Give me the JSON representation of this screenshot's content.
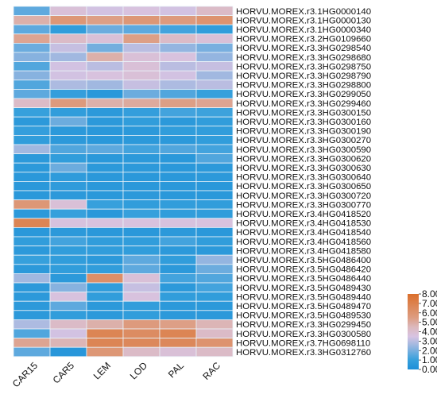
{
  "chart_data": {
    "type": "heatmap",
    "columns": [
      "CAR15",
      "CAR5",
      "LEM",
      "LOD",
      "PAL",
      "RAC"
    ],
    "rows": [
      "HORVU.MOREX.r3.1HG0000140",
      "HORVU.MOREX.r3.1HG0000130",
      "HORVU.MOREX.r3.1HG0000340",
      "HORVU.MOREX.r3.2HG0109660",
      "HORVU.MOREX.r3.3HG0298540",
      "HORVU.MOREX.r3.3HG0298680",
      "HORVU.MOREX.r3.3HG0298750",
      "HORVU.MOREX.r3.3HG0298790",
      "HORVU.MOREX.r3.3HG0298800",
      "HORVU.MOREX.r3.3HG0299050",
      "HORVU.MOREX.r3.3HG0299460",
      "HORVU.MOREX.r3.3HG0300150",
      "HORVU.MOREX.r3.3HG0300160",
      "HORVU.MOREX.r3.3HG0300190",
      "HORVU.MOREX.r3.3HG0300270",
      "HORVU.MOREX.r3.3HG0300590",
      "HORVU.MOREX.r3.3HG0300620",
      "HORVU.MOREX.r3.3HG0300630",
      "HORVU.MOREX.r3.3HG0300640",
      "HORVU.MOREX.r3.3HG0300650",
      "HORVU.MOREX.r3.3HG0300720",
      "HORVU.MOREX.r3.3HG0300770",
      "HORVU.MOREX.r3.4HG0418520",
      "HORVU.MOREX.r3.4HG0418530",
      "HORVU.MOREX.r3.4HG0418540",
      "HORVU.MOREX.r3.4HG0418560",
      "HORVU.MOREX.r3.4HG0418580",
      "HORVU.MOREX.r3.5HG0486400",
      "HORVU.MOREX.r3.5HG0486420",
      "HORVU.MOREX.r3.5HG0486440",
      "HORVU.MOREX.r3.5HG0489430",
      "HORVU.MOREX.r3.5HG0489440",
      "HORVU.MOREX.r3.5HG0489470",
      "HORVU.MOREX.r3.5HG0489530",
      "HORVU.MOREX.r3.3HG0299450",
      "HORVU.MOREX.r3.3HG0300580",
      "HORVU.MOREX.r3.7HG0698110",
      "HORVU.MOREX.r3.3HG0312760"
    ],
    "values": [
      [
        1.6,
        3.8,
        3.4,
        3.6,
        3.4,
        4.2
      ],
      [
        4.8,
        5.8,
        5.4,
        5.8,
        5.6,
        6.0
      ],
      [
        1.6,
        0.8,
        1.8,
        1.6,
        1.2,
        0.8
      ],
      [
        5.2,
        4.2,
        3.8,
        5.4,
        4.2,
        3.8
      ],
      [
        1.8,
        3.2,
        1.9,
        3.0,
        2.4,
        2.0
      ],
      [
        2.2,
        2.6,
        4.8,
        3.8,
        3.6,
        2.4
      ],
      [
        1.4,
        3.4,
        3.0,
        3.8,
        3.0,
        3.2
      ],
      [
        2.2,
        3.4,
        3.6,
        3.8,
        3.4,
        2.6
      ],
      [
        1.4,
        2.8,
        2.6,
        3.2,
        2.8,
        3.0
      ],
      [
        1.6,
        0.9,
        0.5,
        1.8,
        1.4,
        1.0
      ],
      [
        4.2,
        5.6,
        4.8,
        5.0,
        5.4,
        5.2
      ],
      [
        1.0,
        0.8,
        0.6,
        0.9,
        1.2,
        1.1
      ],
      [
        0.6,
        1.8,
        0.6,
        0.8,
        0.6,
        0.8
      ],
      [
        0.9,
        0.6,
        0.5,
        0.6,
        0.8,
        0.8
      ],
      [
        0.8,
        0.6,
        0.5,
        0.6,
        0.6,
        0.8
      ],
      [
        2.6,
        1.4,
        1.6,
        1.2,
        1.4,
        1.2
      ],
      [
        0.6,
        0.8,
        0.5,
        0.6,
        0.5,
        1.4
      ],
      [
        0.6,
        1.8,
        0.6,
        0.6,
        0.5,
        0.6
      ],
      [
        0.5,
        0.7,
        0.5,
        0.5,
        0.5,
        0.6
      ],
      [
        0.5,
        0.7,
        0.5,
        0.5,
        0.5,
        0.5
      ],
      [
        0.5,
        0.6,
        0.5,
        0.6,
        0.5,
        0.5
      ],
      [
        5.8,
        3.8,
        1.0,
        0.8,
        0.8,
        0.8
      ],
      [
        0.6,
        1.0,
        0.5,
        1.0,
        0.8,
        0.8
      ],
      [
        6.8,
        3.6,
        3.6,
        3.6,
        3.6,
        3.6
      ],
      [
        0.5,
        0.6,
        0.5,
        0.5,
        0.6,
        0.5
      ],
      [
        0.8,
        1.2,
        0.8,
        0.8,
        1.2,
        0.8
      ],
      [
        0.6,
        0.8,
        0.8,
        0.8,
        0.6,
        0.6
      ],
      [
        1.0,
        0.8,
        0.6,
        1.6,
        0.8,
        2.4
      ],
      [
        0.6,
        0.8,
        0.8,
        1.6,
        0.6,
        1.8
      ],
      [
        2.6,
        0.6,
        6.2,
        3.8,
        1.2,
        1.4
      ],
      [
        0.6,
        2.2,
        0.8,
        3.2,
        0.6,
        1.2
      ],
      [
        0.6,
        3.6,
        0.8,
        3.6,
        0.8,
        0.8
      ],
      [
        0.6,
        1.6,
        0.6,
        0.8,
        0.6,
        0.6
      ],
      [
        0.6,
        0.8,
        0.6,
        0.8,
        0.6,
        0.6
      ],
      [
        2.8,
        4.2,
        4.8,
        5.6,
        5.4,
        4.6
      ],
      [
        1.4,
        3.4,
        6.8,
        6.4,
        6.8,
        4.2
      ],
      [
        5.2,
        4.6,
        6.8,
        6.6,
        6.6,
        6.0
      ],
      [
        1.6,
        0.4,
        5.8,
        4.2,
        3.8,
        4.2
      ]
    ],
    "legend": {
      "ticks": [
        "8.00",
        "7.00",
        "6.00",
        "5.00",
        "4.00",
        "3.00",
        "2.00",
        "1.00",
        "0.00"
      ],
      "min": 0,
      "max": 8,
      "stops": [
        {
          "v": 0.0,
          "color": "#1e8fd8"
        },
        {
          "v": 1.0,
          "color": "#36a0dc"
        },
        {
          "v": 2.5,
          "color": "#9bb7e0"
        },
        {
          "v": 3.5,
          "color": "#d8c3e2"
        },
        {
          "v": 4.5,
          "color": "#dcb8bc"
        },
        {
          "v": 5.5,
          "color": "#dd9c80"
        },
        {
          "v": 8.0,
          "color": "#db6f2c"
        }
      ]
    },
    "grid": true,
    "legend_placement": "bottom-right"
  }
}
